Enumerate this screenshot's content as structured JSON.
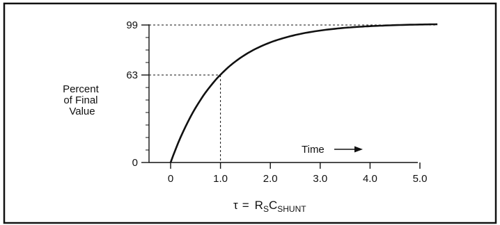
{
  "chart_data": {
    "type": "line",
    "title": "",
    "ylabel": [
      "Percent",
      "of Final",
      "Value"
    ],
    "xlabel": {
      "tau": "τ",
      "equals": "=",
      "r": "R",
      "r_sub": "S",
      "c": "C",
      "c_sub": "SHUNT"
    },
    "time_label": "Time",
    "x_ticks": [
      0,
      1,
      2,
      3,
      4,
      5
    ],
    "x_tick_labels": [
      "0",
      "1.0",
      "2.0",
      "3.0",
      "4.0",
      "5.0"
    ],
    "y_ticks": [
      0,
      63,
      99
    ],
    "y_tick_labels": [
      "0",
      "63",
      "99"
    ],
    "xlim": [
      0,
      5.35
    ],
    "ylim": [
      0,
      99
    ],
    "series": [
      {
        "formula": "100*(1-exp(-x))",
        "x": [
          0,
          0.5,
          1.0,
          1.5,
          2.0,
          2.5,
          3.0,
          3.5,
          4.0,
          4.5,
          5.0,
          5.35
        ],
        "values": [
          0,
          39.3,
          63.2,
          77.7,
          86.5,
          91.8,
          95.0,
          97.0,
          98.2,
          98.9,
          99.3,
          99.5
        ]
      }
    ],
    "reference_lines": [
      {
        "x": 1.0,
        "y": 63
      },
      {
        "y": 99
      }
    ],
    "grid": false,
    "legend": "none"
  }
}
